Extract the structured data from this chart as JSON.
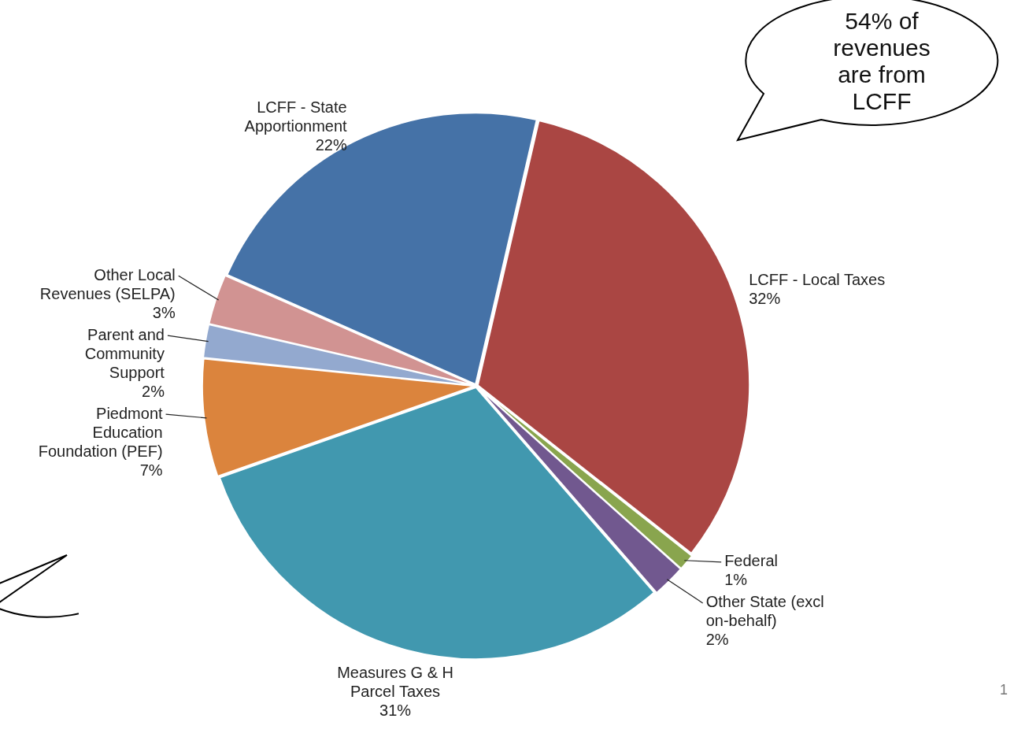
{
  "chart_data": {
    "type": "pie",
    "categories": [
      "LCFF - Local Taxes",
      "Federal",
      "Other State (excl on-behalf)",
      "Measures G & H Parcel Taxes",
      "Piedmont Education Foundation (PEF)",
      "Parent and Community Support",
      "Other Local Revenues (SELPA)",
      "LCFF - State Apportionment"
    ],
    "values": [
      32,
      1,
      2,
      31,
      7,
      2,
      3,
      22
    ],
    "colors": [
      "#aa4643",
      "#89a54e",
      "#71588f",
      "#4198af",
      "#db843d",
      "#93a9cf",
      "#d19392",
      "#4572a7"
    ],
    "value_labels": [
      "32%",
      "1%",
      "2%",
      "31%",
      "7%",
      "2%",
      "3%",
      "22%"
    ],
    "annotations": [
      "54% of revenues are from LCFF",
      "1"
    ]
  }
}
